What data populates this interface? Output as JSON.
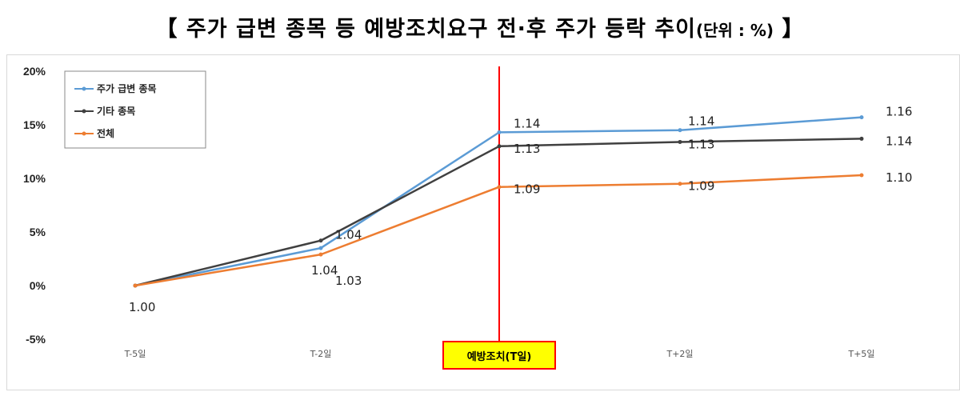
{
  "title": {
    "main": "【 주가 급변 종목 등 예방조치요구 전·후 주가 등락 추이",
    "unit": "(단위 : %)",
    "close": " 】"
  },
  "chart_data": {
    "type": "line",
    "categories": [
      "T-5일",
      "T-2일",
      "예방조치(T일)",
      "T+2일",
      "T+5일"
    ],
    "ylim": [
      -5,
      20
    ],
    "yticks": [
      "-5%",
      "0%",
      "5%",
      "10%",
      "15%",
      "20%"
    ],
    "ytick_values": [
      -5,
      0,
      5,
      10,
      15,
      20
    ],
    "grid": false,
    "legend_position": "top-left",
    "event_marker": {
      "category": "예방조치(T일)",
      "label": "예방조치(T일)",
      "color": "#ff0000",
      "label_bg": "#ffff00"
    },
    "series": [
      {
        "name": "주가 급변 종목",
        "color": "#5b9bd5",
        "values": [
          0,
          3.5,
          14.3,
          14.5,
          15.7
        ],
        "labels": [
          "",
          "1.04",
          "1.14",
          "1.14",
          "1.16"
        ]
      },
      {
        "name": "기타 종목",
        "color": "#404040",
        "values": [
          0,
          4.2,
          13.0,
          13.4,
          13.7
        ],
        "labels": [
          "",
          "1.04",
          "1.13",
          "1.13",
          "1.14"
        ]
      },
      {
        "name": "전체",
        "color": "#ed7d31",
        "values": [
          0,
          2.9,
          9.2,
          9.5,
          10.3
        ],
        "labels": [
          "1.00",
          "1.03",
          "1.09",
          "1.09",
          "1.10"
        ]
      }
    ]
  }
}
